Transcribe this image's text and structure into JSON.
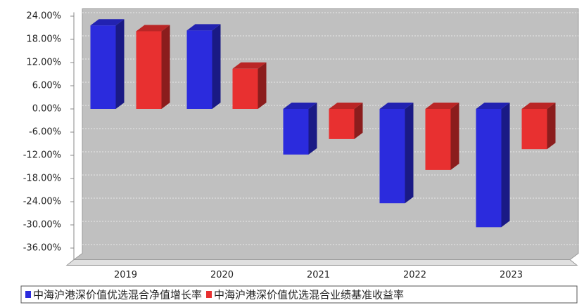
{
  "chart_data": {
    "type": "bar3d",
    "categories": [
      "2019",
      "2020",
      "2021",
      "2022",
      "2023"
    ],
    "series": [
      {
        "name": "中海沪港深价值优选混合净值增长率",
        "color": "#2b2bdd",
        "values": [
          21.6,
          20.3,
          -11.8,
          -24.4,
          -30.6
        ]
      },
      {
        "name": "中海沪港深价值优选混合业绩基准收益率",
        "color": "#e83030",
        "values": [
          20.1,
          10.4,
          -7.8,
          -15.8,
          -10.4
        ]
      }
    ],
    "ylim": [
      -39,
      25
    ],
    "yticks": [
      {
        "value": 24,
        "label": "24.00%"
      },
      {
        "value": 18,
        "label": "18.00%"
      },
      {
        "value": 12,
        "label": "12.00%"
      },
      {
        "value": 6,
        "label": "6.00%"
      },
      {
        "value": 0,
        "label": "0.00%"
      },
      {
        "value": -6,
        "label": "-6.00%"
      },
      {
        "value": -12,
        "label": "-12.00%"
      },
      {
        "value": -18,
        "label": "-18.00%"
      },
      {
        "value": -24,
        "label": "-24.00%"
      },
      {
        "value": -30,
        "label": "-30.00%"
      },
      {
        "value": -36,
        "label": "-36.00%"
      }
    ],
    "grid": true,
    "legend": "bottom"
  }
}
